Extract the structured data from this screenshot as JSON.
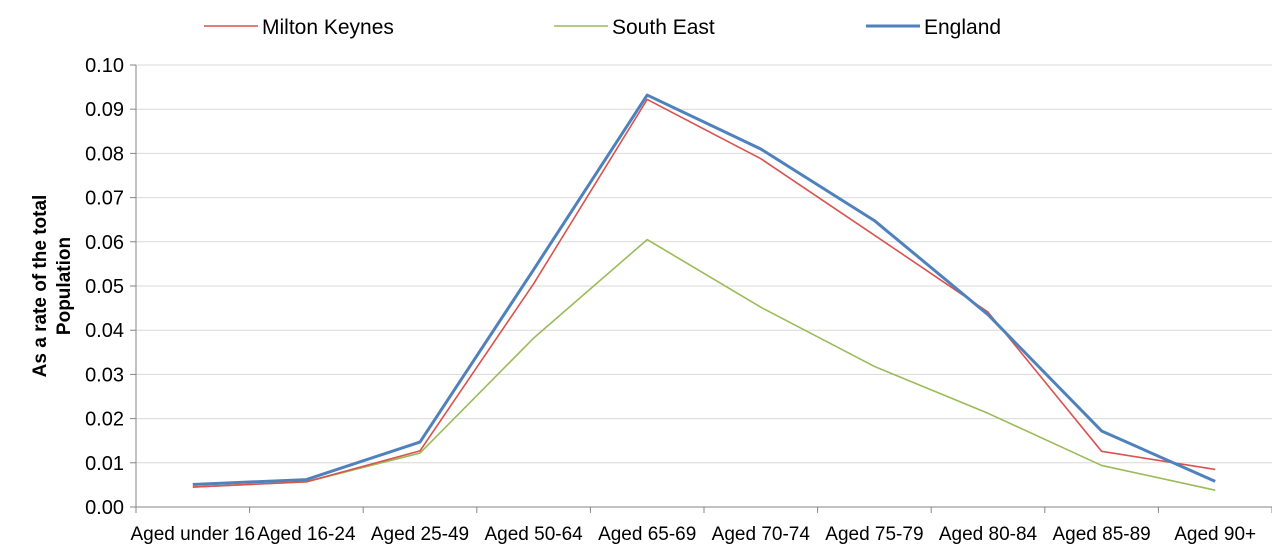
{
  "chart_data": {
    "type": "line",
    "title": "",
    "xlabel": "",
    "ylabel": "As a rate of the total Population",
    "ylabel_lines": [
      "As a rate of the total",
      "Population"
    ],
    "ylim": [
      0,
      0.1
    ],
    "yticks": [
      0.0,
      0.01,
      0.02,
      0.03,
      0.04,
      0.05,
      0.06,
      0.07,
      0.08,
      0.09,
      0.1
    ],
    "ytick_labels": [
      "0.00",
      "0.01",
      "0.02",
      "0.03",
      "0.04",
      "0.05",
      "0.06",
      "0.07",
      "0.08",
      "0.09",
      "0.10"
    ],
    "grid": true,
    "legend": "top",
    "categories": [
      "Aged under 16",
      "Aged 16-24",
      "Aged 25-49",
      "Aged 50-64",
      "Aged 65-69",
      "Aged 70-74",
      "Aged 75-79",
      "Aged 80-84",
      "Aged 85-89",
      "Aged 90+"
    ],
    "series": [
      {
        "name": "Milton Keynes",
        "color": "#d9534f",
        "values": [
          0.0045,
          0.0057,
          0.0127,
          0.0505,
          0.0922,
          0.0788,
          0.0615,
          0.0441,
          0.0126,
          0.0085
        ]
      },
      {
        "name": "South East",
        "color": "#9bbb59",
        "values": [
          0.0045,
          0.0057,
          0.0122,
          0.0382,
          0.0605,
          0.0452,
          0.0318,
          0.0212,
          0.0094,
          0.0038
        ]
      },
      {
        "name": "England",
        "color": "#4f81bd",
        "values": [
          0.0051,
          0.0062,
          0.0147,
          0.0537,
          0.0932,
          0.081,
          0.0648,
          0.0435,
          0.0172,
          0.0058
        ]
      }
    ]
  }
}
